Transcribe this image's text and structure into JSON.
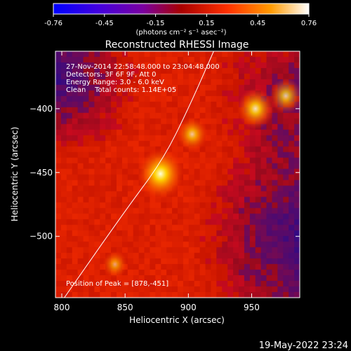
{
  "colorbar": {
    "ticks": [
      "-0.76",
      "-0.45",
      "-0.15",
      "0.15",
      "0.45",
      "0.76"
    ],
    "units_label": "(photons cm⁻² s⁻¹ asec⁻²)",
    "min": -0.76,
    "max": 0.76
  },
  "image_title": "Reconstructed RHESSI Image",
  "annotations": {
    "line1": "27-Nov-2014 22:58:48.000 to 23:04:48.000",
    "line2": "Detectors: 3F 6F 9F, Att 0",
    "line3": "Energy Range: 3.0 - 6.0 keV",
    "line4": "Clean    Total counts: 1.14E+05",
    "peak": "Position of Peak = [878,-451]"
  },
  "timestamp": "19-May-2022 23:24",
  "chart_data": {
    "type": "heatmap",
    "title": "Reconstructed RHESSI Image",
    "xlabel": "Heliocentric X (arcsec)",
    "ylabel": "Heliocentric Y (arcsec)",
    "xlim": [
      795,
      988
    ],
    "ylim": [
      -548,
      -355
    ],
    "x_ticks": [
      800,
      850,
      900,
      950
    ],
    "y_ticks": [
      -400,
      -450,
      -500
    ],
    "x_tick_labels": [
      "800",
      "850",
      "900",
      "950"
    ],
    "y_tick_labels": [
      "−400",
      "−450",
      "−500"
    ],
    "peak_position": [
      878,
      -451
    ],
    "sources": [
      {
        "x": 878,
        "y": -451,
        "intensity": 0.76
      },
      {
        "x": 953,
        "y": -400,
        "intensity": 0.52
      },
      {
        "x": 977,
        "y": -390,
        "intensity": 0.4
      },
      {
        "x": 903,
        "y": -420,
        "intensity": 0.38
      },
      {
        "x": 842,
        "y": -522,
        "intensity": 0.22
      }
    ],
    "limb_curve": [
      [
        802,
        -548
      ],
      [
        850,
        -480
      ],
      [
        880,
        -440
      ],
      [
        900,
        -400
      ],
      [
        920,
        -355
      ]
    ],
    "colorscale": "red-temperature",
    "grid": false
  }
}
